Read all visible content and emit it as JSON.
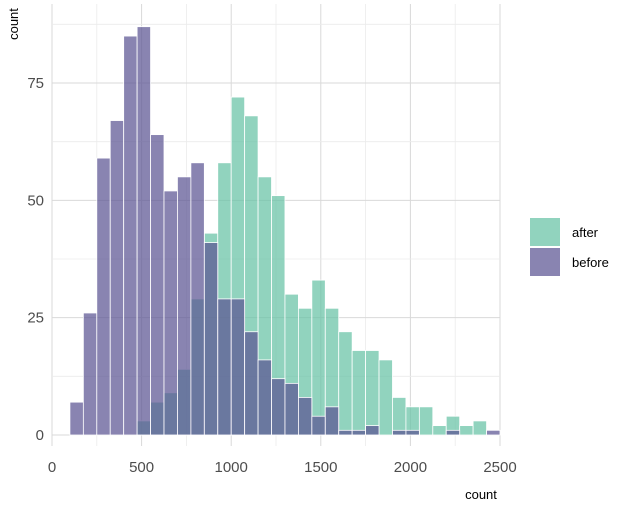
{
  "chart_data": {
    "type": "histogram",
    "title": "",
    "xlabel": "count",
    "ylabel": "count",
    "xlim": [
      0,
      2500
    ],
    "ylim": [
      0,
      90
    ],
    "x_ticks": [
      0,
      500,
      1000,
      1500,
      2000,
      2500
    ],
    "y_ticks": [
      0,
      25,
      50,
      75
    ],
    "grid": true,
    "legend_position": "right",
    "bin_edges": [
      100,
      175,
      250,
      325,
      400,
      475,
      550,
      625,
      700,
      775,
      850,
      925,
      1000,
      1075,
      1150,
      1225,
      1300,
      1375,
      1450,
      1525,
      1600,
      1675,
      1750,
      1825,
      1900,
      1975,
      2050,
      2125,
      2200,
      2275,
      2350,
      2425
    ],
    "series": [
      {
        "name": "after",
        "color": "#66c2a5",
        "values": [
          0,
          0,
          0,
          0,
          0,
          3,
          7,
          9,
          14,
          29,
          43,
          58,
          72,
          68,
          55,
          51,
          30,
          27,
          33,
          27,
          22,
          18,
          18,
          16,
          8,
          6,
          6,
          2,
          4,
          2,
          3,
          0
        ]
      },
      {
        "name": "before",
        "color": "#5b5493",
        "values": [
          7,
          26,
          59,
          67,
          85,
          87,
          64,
          52,
          55,
          58,
          41,
          29,
          29,
          22,
          16,
          12,
          11,
          8,
          4,
          6,
          1,
          1,
          2,
          0,
          1,
          1,
          0,
          0,
          1,
          0,
          0,
          1
        ]
      }
    ]
  }
}
